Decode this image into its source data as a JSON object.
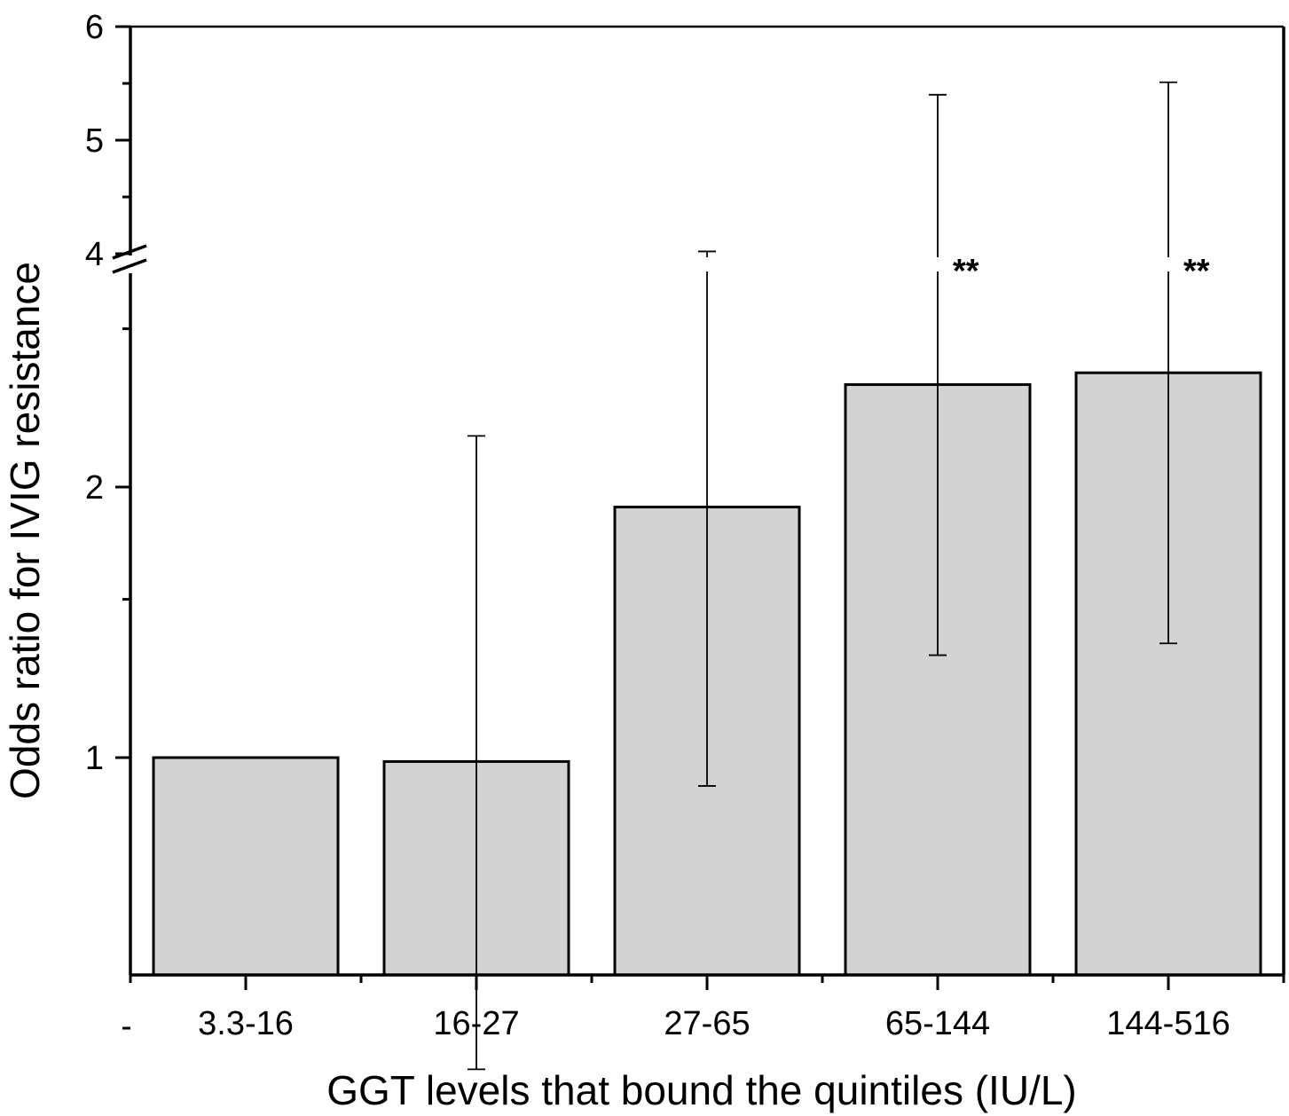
{
  "chart_data": {
    "type": "bar",
    "categories": [
      "3.3-16",
      "16-27",
      "27-65",
      "65-144",
      "144-516"
    ],
    "values": [
      1.0,
      0.99,
      1.9,
      2.6,
      2.68
    ],
    "error_low": [
      null,
      0.45,
      0.93,
      1.3,
      1.34
    ],
    "error_high": [
      null,
      2.28,
      4.02,
      5.4,
      5.51
    ],
    "annotations": [
      "",
      "",
      "",
      "**",
      "**"
    ],
    "xlabel": "GGT levels that bound the quintiles (IU/L)",
    "ylabel": "Odds ratio for IVIG resistance",
    "y_scale": "log (lower segment), linear (upper segment)",
    "y_axis_break": true,
    "ylim_lower": [
      0.38,
      3.9
    ],
    "ylim_upper": [
      4,
      6
    ],
    "y_ticks": [
      "1",
      "2",
      "4",
      "5",
      "6"
    ],
    "bar_color": "#d3d3d3",
    "grid": false,
    "legend": "none"
  }
}
